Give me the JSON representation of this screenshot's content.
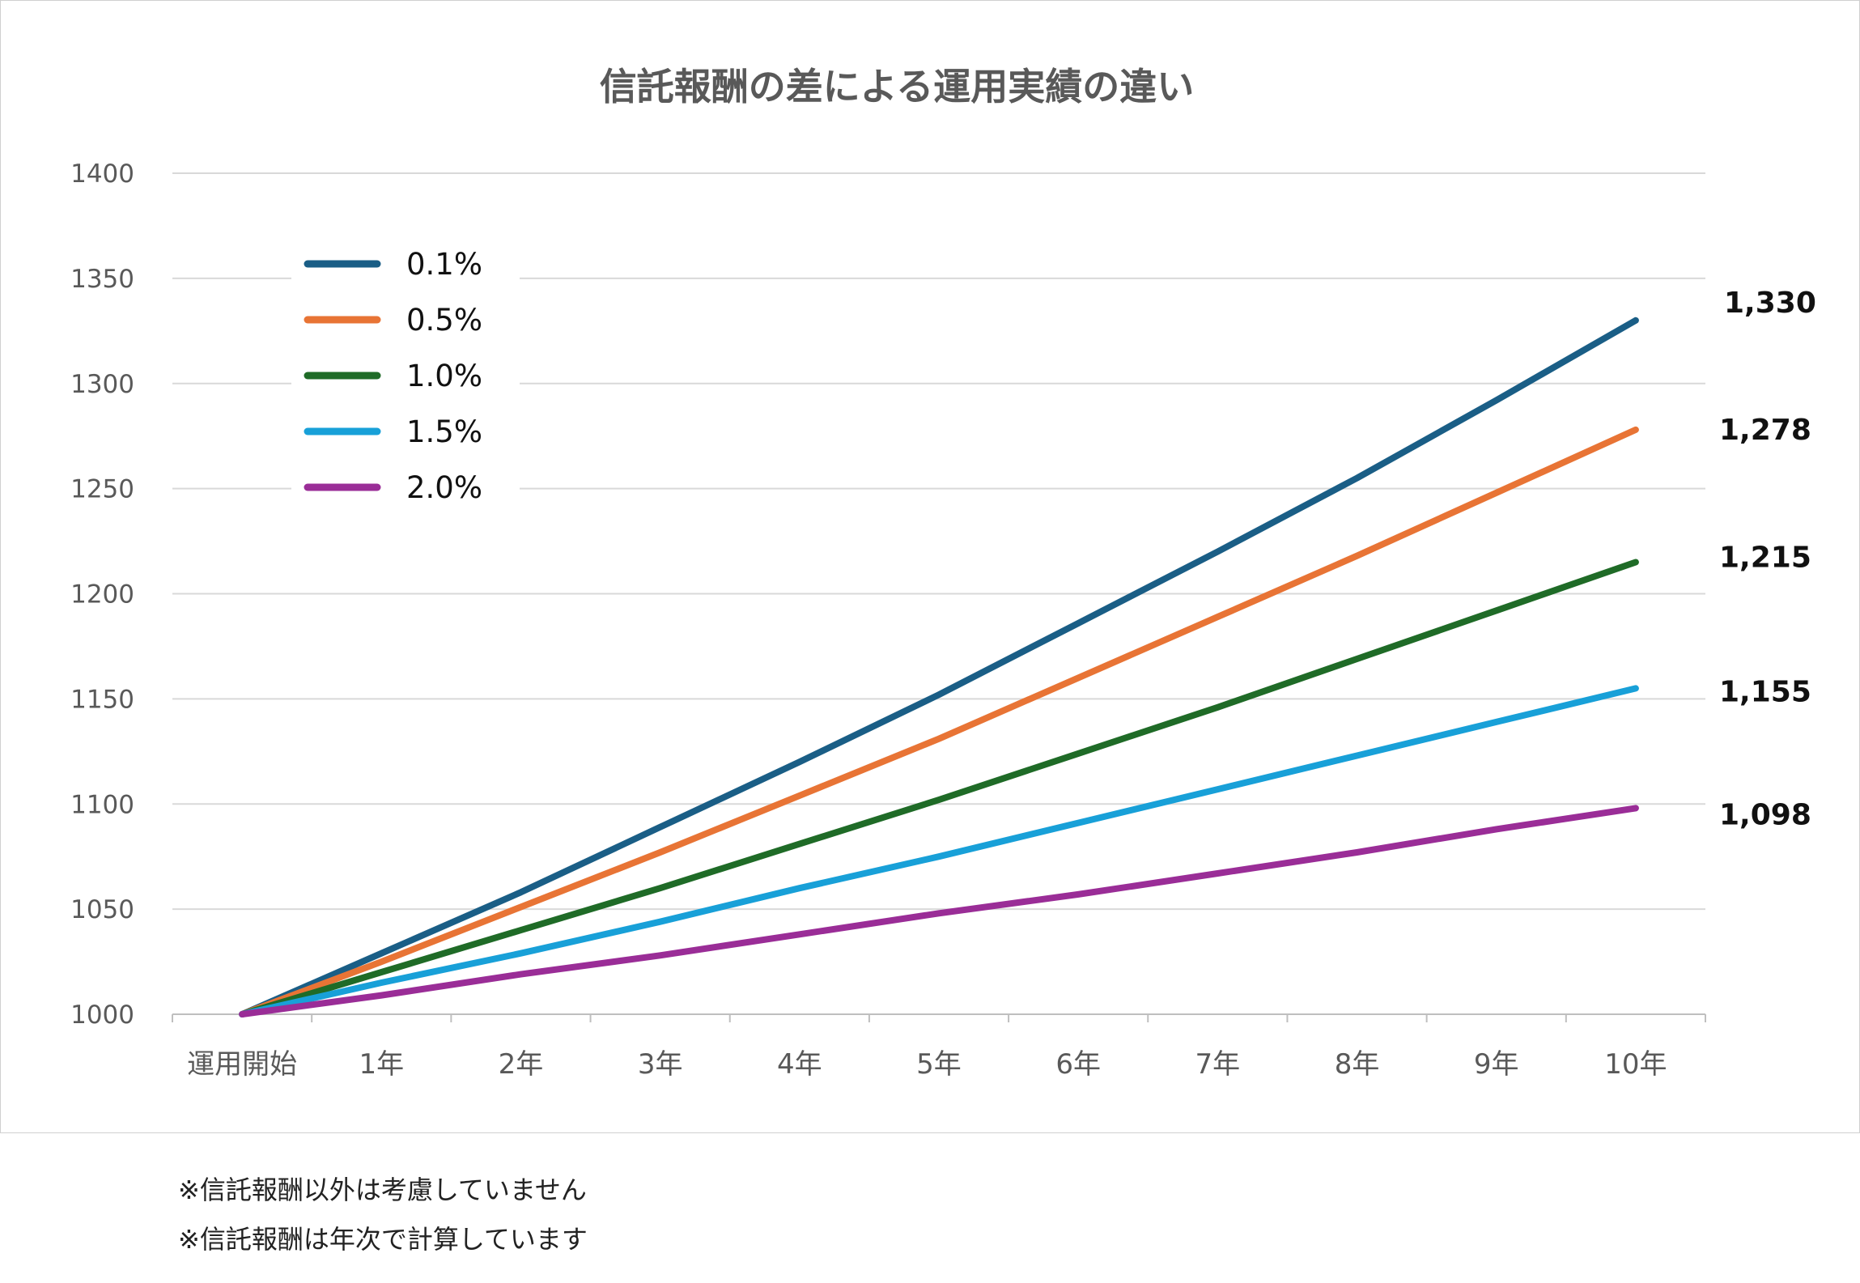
{
  "chart_data": {
    "type": "line",
    "title": "信託報酬の差による運用実績の違い",
    "xlabel": "",
    "ylabel": "",
    "categories": [
      "運用開始",
      "1年",
      "2年",
      "3年",
      "4年",
      "5年",
      "6年",
      "7年",
      "8年",
      "9年",
      "10年"
    ],
    "ylim": [
      1000,
      1400
    ],
    "yticks": [
      "1000",
      "1050",
      "1100",
      "1150",
      "1200",
      "1250",
      "1300",
      "1350",
      "1400"
    ],
    "grid": true,
    "legend_position": "top-left",
    "series": [
      {
        "name": "0.1%",
        "color": "#1a5e86",
        "values": [
          1000,
          1029,
          1058,
          1089,
          1120,
          1152,
          1186,
          1220,
          1255,
          1292,
          1330
        ],
        "end_label": "1,330"
      },
      {
        "name": "0.5%",
        "color": "#e87435",
        "values": [
          1000,
          1025,
          1051,
          1077,
          1104,
          1131,
          1160,
          1189,
          1218,
          1248,
          1278
        ],
        "end_label": "1,278"
      },
      {
        "name": "1.0%",
        "color": "#1f6b27",
        "values": [
          1000,
          1020,
          1040,
          1060,
          1081,
          1102,
          1124,
          1146,
          1169,
          1192,
          1215
        ],
        "end_label": "1,215"
      },
      {
        "name": "1.5%",
        "color": "#18a0d8",
        "values": [
          1000,
          1015,
          1029,
          1044,
          1060,
          1075,
          1091,
          1107,
          1123,
          1139,
          1155
        ],
        "end_label": "1,155"
      },
      {
        "name": "2.0%",
        "color": "#9a2d97",
        "values": [
          1000,
          1009,
          1019,
          1028,
          1038,
          1048,
          1057,
          1067,
          1077,
          1088,
          1098
        ],
        "end_label": "1,098"
      }
    ]
  },
  "notes": [
    "※信託報酬以外は考慮していません",
    "※信託報酬は年次で計算しています"
  ]
}
